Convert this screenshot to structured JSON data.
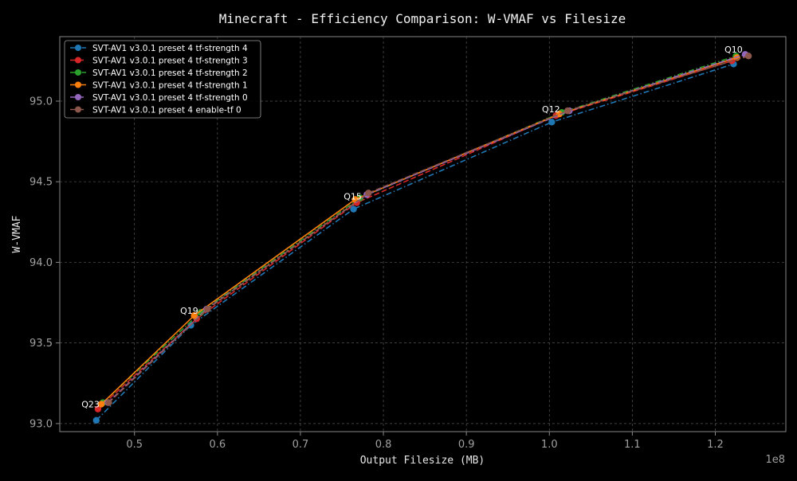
{
  "chart_data": {
    "type": "line",
    "title": "Minecraft - Efficiency Comparison: W-VMAF vs Filesize",
    "xlabel": "Output Filesize (MB)",
    "ylabel": "W-VMAF",
    "x_offset_label": "1e8",
    "xlim": [
      0.41,
      1.285
    ],
    "ylim": [
      92.95,
      95.4
    ],
    "x_ticks": [
      0.5,
      0.6,
      0.7,
      0.8,
      0.9,
      1.0,
      1.1,
      1.2
    ],
    "x_tick_labels": [
      "0.5",
      "0.6",
      "0.7",
      "0.8",
      "0.9",
      "1.0",
      "1.1",
      "1.2"
    ],
    "y_ticks": [
      93.0,
      93.5,
      94.0,
      94.5,
      95.0
    ],
    "y_tick_labels": [
      "93.0",
      "93.5",
      "94.0",
      "94.5",
      "95.0"
    ],
    "grid": true,
    "legend_position": "top-left",
    "series": [
      {
        "name": "SVT-AV1 v3.0.1 preset 4 tf-strength 4",
        "color": "#1f77b4",
        "dash": "dashdot",
        "x": [
          0.454,
          0.568,
          0.764,
          1.003,
          1.222
        ],
        "y": [
          93.02,
          93.61,
          94.33,
          94.87,
          95.23
        ]
      },
      {
        "name": "SVT-AV1 v3.0.1 preset 4 tf-strength 3",
        "color": "#d62728",
        "dash": "dashed",
        "x": [
          0.456,
          0.575,
          0.768,
          1.008,
          1.22
        ],
        "y": [
          93.09,
          93.65,
          94.37,
          94.91,
          95.25
        ]
      },
      {
        "name": "SVT-AV1 v3.0.1 preset 4 tf-strength 2",
        "color": "#2ca02c",
        "dash": "dashdot",
        "x": [
          0.462,
          0.58,
          0.772,
          1.015,
          1.225
        ],
        "y": [
          93.13,
          93.69,
          94.4,
          94.93,
          95.28
        ]
      },
      {
        "name": "SVT-AV1 v3.0.1 preset 4 tf-strength 1",
        "color": "#ff7f0e",
        "dash": "solid",
        "x": [
          0.46,
          0.572,
          0.766,
          1.012,
          1.226
        ],
        "y": [
          93.12,
          93.67,
          94.39,
          94.92,
          95.27
        ]
      },
      {
        "name": "SVT-AV1 v3.0.1 preset 4 tf-strength 0",
        "color": "#9467bd",
        "dash": "dashed",
        "x": [
          0.468,
          0.587,
          0.78,
          1.024,
          1.236
        ],
        "y": [
          93.13,
          93.71,
          94.42,
          94.94,
          95.29
        ]
      },
      {
        "name": "SVT-AV1 v3.0.1 preset 4 enable-tf 0",
        "color": "#8c564b",
        "dash": "dashed",
        "x": [
          0.469,
          0.588,
          0.782,
          1.022,
          1.24
        ],
        "y": [
          93.13,
          93.71,
          94.43,
          94.94,
          95.28
        ]
      }
    ],
    "annotations": [
      {
        "text": "Q23",
        "x": 0.447,
        "y": 93.1
      },
      {
        "text": "Q19",
        "x": 0.566,
        "y": 93.68
      },
      {
        "text": "Q15",
        "x": 0.763,
        "y": 94.39
      },
      {
        "text": "Q12",
        "x": 1.002,
        "y": 94.93
      },
      {
        "text": "Q10",
        "x": 1.222,
        "y": 95.3
      }
    ]
  }
}
